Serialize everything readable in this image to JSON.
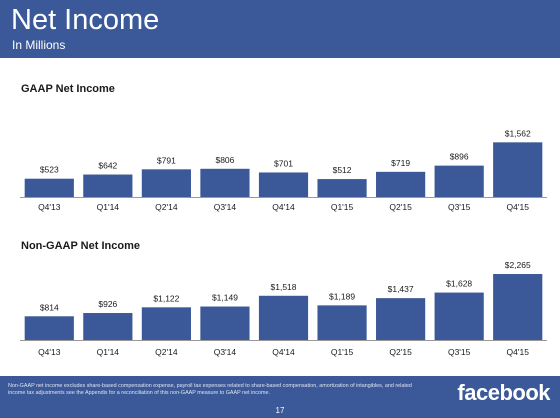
{
  "header": {
    "title": "Net Income",
    "subtitle": "In Millions"
  },
  "chart_data": [
    {
      "type": "bar",
      "title": "GAAP Net Income",
      "categories": [
        "Q4'13",
        "Q1'14",
        "Q2'14",
        "Q3'14",
        "Q4'14",
        "Q1'15",
        "Q2'15",
        "Q3'15",
        "Q4'15"
      ],
      "values": [
        523,
        642,
        791,
        806,
        701,
        512,
        719,
        896,
        1562
      ],
      "data_labels": [
        "$523",
        "$642",
        "$791",
        "$806",
        "$701",
        "$512",
        "$719",
        "$896",
        "$1,562"
      ],
      "ylim": [
        0,
        1600
      ],
      "color": "#3b5998"
    },
    {
      "type": "bar",
      "title": "Non-GAAP Net Income",
      "categories": [
        "Q4'13",
        "Q1'14",
        "Q2'14",
        "Q3'14",
        "Q4'14",
        "Q1'15",
        "Q2'15",
        "Q3'15",
        "Q4'15"
      ],
      "values": [
        814,
        926,
        1122,
        1149,
        1518,
        1189,
        1437,
        1628,
        2265
      ],
      "data_labels": [
        "$814",
        "$926",
        "$1,122",
        "$1,149",
        "$1,518",
        "$1,189",
        "$1,437",
        "$1,628",
        "$2,265"
      ],
      "ylim": [
        0,
        2300
      ],
      "color": "#3b5998"
    }
  ],
  "footer": {
    "footnote": "Non-GAAP net income excludes share-based compensation expense, payroll tax expenses related to share-based compensation, amortization of intangibles, and related income tax adjustments see the Appendix for a reconciliation of this non-GAAP measure to GAAP net income.",
    "logo": "facebook",
    "page_number": "17"
  },
  "colors": {
    "brand": "#3b5998",
    "label_text": "#1a1a1a",
    "axis": "#999999"
  }
}
